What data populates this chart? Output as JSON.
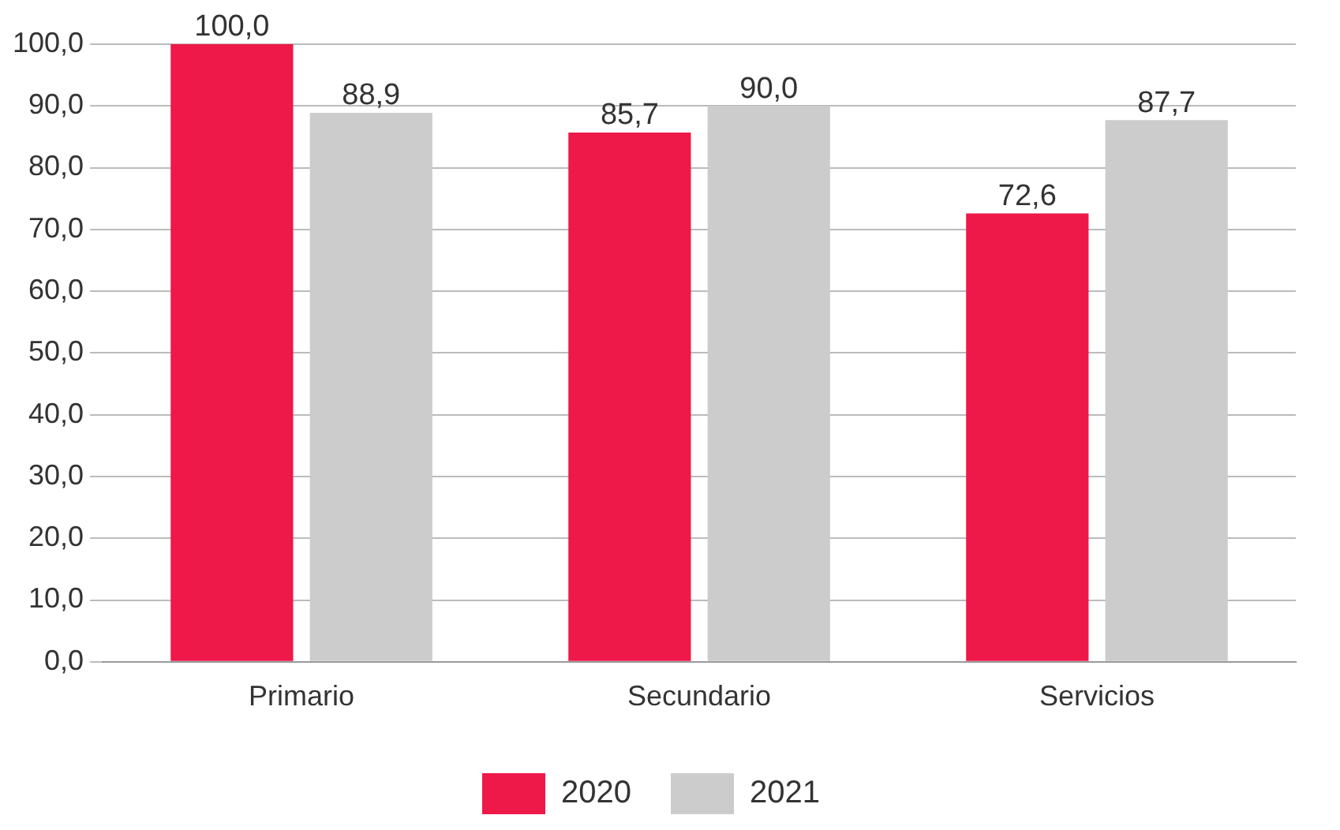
{
  "chart_data": {
    "type": "bar",
    "categories": [
      "Primario",
      "Secundario",
      "Servicios"
    ],
    "series": [
      {
        "name": "2020",
        "color": "#ee1849",
        "values": [
          100.0,
          85.7,
          72.6
        ],
        "value_labels": [
          "100,0",
          "85,7",
          "72,6"
        ]
      },
      {
        "name": "2021",
        "color": "#cccccc",
        "values": [
          88.9,
          90.0,
          87.7
        ],
        "value_labels": [
          "88,9",
          "90,0",
          "87,7"
        ]
      }
    ],
    "ylim": [
      0,
      100
    ],
    "yticks": [
      {
        "value": 0,
        "label": "0,0"
      },
      {
        "value": 10,
        "label": "10,0"
      },
      {
        "value": 20,
        "label": "20,0"
      },
      {
        "value": 30,
        "label": "30,0"
      },
      {
        "value": 40,
        "label": "40,0"
      },
      {
        "value": 50,
        "label": "50,0"
      },
      {
        "value": 60,
        "label": "60,0"
      },
      {
        "value": 70,
        "label": "70,0"
      },
      {
        "value": 80,
        "label": "80,0"
      },
      {
        "value": 90,
        "label": "90,0"
      },
      {
        "value": 100,
        "label": "100,0"
      }
    ],
    "grid": "y",
    "legend": "bottom"
  }
}
